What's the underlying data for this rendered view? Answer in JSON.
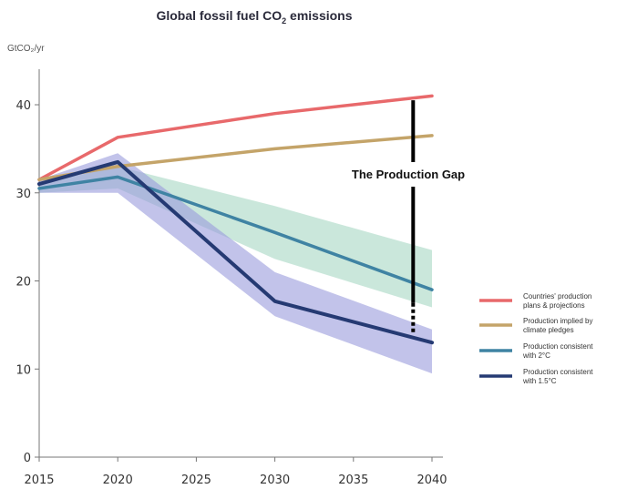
{
  "chart_data": {
    "type": "line",
    "title_main": "Global fossil fuel CO",
    "title_sub": "2",
    "title_end": " emissions",
    "ylabel": "GtCO₂/yr",
    "x_ticks": [
      "2015",
      "2020",
      "2025",
      "2030",
      "2035",
      "2040"
    ],
    "y_ticks": [
      "0",
      "10",
      "20",
      "30",
      "40"
    ],
    "xlim": [
      2015,
      2040
    ],
    "ylim": [
      0,
      43
    ],
    "x": [
      2015,
      2020,
      2030,
      2040
    ],
    "series": [
      {
        "name": "Countries' production plans & projections",
        "color": "#e8696b",
        "values": [
          31.5,
          36.3,
          39.0,
          41.0
        ]
      },
      {
        "name": "Production implied by climate pledges",
        "color": "#c4a469",
        "values": [
          31.5,
          33.0,
          35.0,
          36.5
        ]
      },
      {
        "name": "Production consistent with 2°C",
        "color": "#3f83a3",
        "values": [
          30.5,
          31.8,
          25.5,
          19.0
        ]
      },
      {
        "name": "Production consistent with 1.5°C",
        "color": "#253a73",
        "values": [
          31.0,
          33.5,
          17.7,
          13.0
        ]
      }
    ],
    "bands": [
      {
        "name": "2°C range",
        "color": "#9fd3bd",
        "x": [
          2015,
          2020,
          2030,
          2040
        ],
        "lower": [
          30.0,
          30.5,
          22.5,
          17.0
        ],
        "upper": [
          31.0,
          33.0,
          28.5,
          23.5
        ]
      },
      {
        "name": "1.5°C range",
        "color": "#9a9bdc",
        "x": [
          2015,
          2020,
          2030,
          2040
        ],
        "lower": [
          30.0,
          30.0,
          16.0,
          9.5
        ],
        "upper": [
          31.5,
          34.5,
          21.0,
          14.5
        ]
      }
    ],
    "gap": {
      "label": "The Production Gap",
      "x": 2038.8,
      "y_top": 40.5,
      "y_bottom": 14.0
    },
    "legend_position": "right",
    "grid": false
  }
}
